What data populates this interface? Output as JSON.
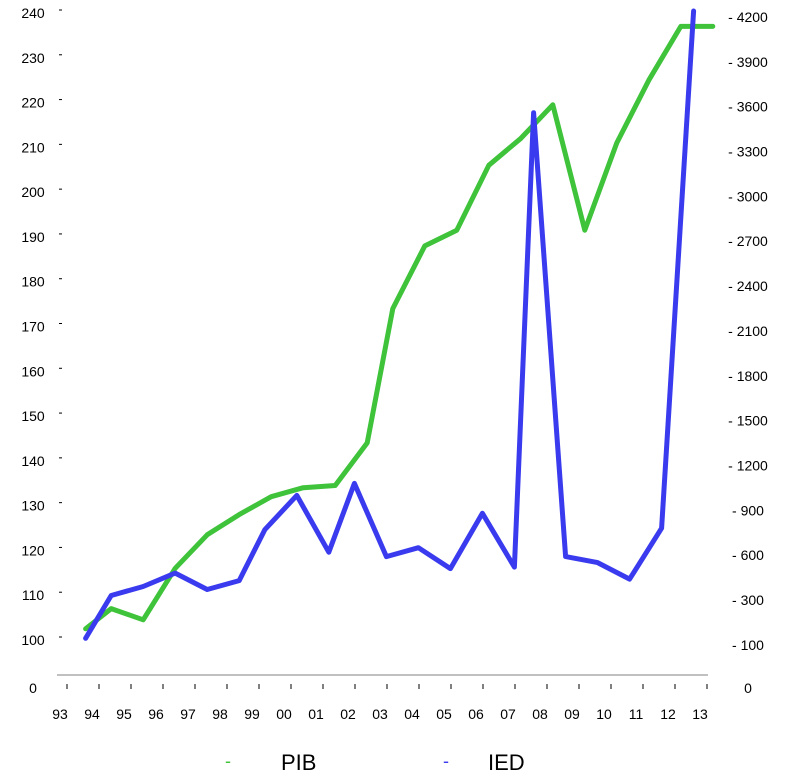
{
  "chart_data": {
    "type": "line",
    "title": "",
    "xlabel": "",
    "ylabel": "",
    "grid": false,
    "legend_placement": "bottom-center",
    "x": [
      "93",
      "94",
      "95",
      "96",
      "97",
      "98",
      "99",
      "00",
      "01",
      "02",
      "03",
      "04",
      "05",
      "06",
      "07",
      "08",
      "09",
      "10",
      "11",
      "12",
      "13"
    ],
    "left_axis": {
      "ticks": [
        "0",
        "100",
        "110",
        "120",
        "130",
        "140",
        "150",
        "160",
        "170",
        "180",
        "190",
        "200",
        "210",
        "220",
        "230",
        "240"
      ]
    },
    "right_axis": {
      "ticks": [
        "0",
        "- 100",
        "- 300",
        "- 600",
        "- 900",
        "- 1200",
        "- 1500",
        "- 1800",
        "- 2100",
        "- 2400",
        "- 2700",
        "- 3000",
        "- 3300",
        "- 3600",
        "- 3900",
        "- 4200"
      ]
    },
    "series": [
      {
        "name": "PIB",
        "axis": "left",
        "color": "#3ec33a",
        "points": [
          {
            "x": 93.8,
            "y": 102.5
          },
          {
            "x": 94.6,
            "y": 107
          },
          {
            "x": 95.6,
            "y": 104.5
          },
          {
            "x": 96.6,
            "y": 116
          },
          {
            "x": 97.6,
            "y": 123.5
          },
          {
            "x": 98.6,
            "y": 128
          },
          {
            "x": 99.6,
            "y": 132
          },
          {
            "x": 100.6,
            "y": 134
          },
          {
            "x": 101.6,
            "y": 134.5
          },
          {
            "x": 102.6,
            "y": 144
          },
          {
            "x": 103.4,
            "y": 174
          },
          {
            "x": 104.4,
            "y": 188
          },
          {
            "x": 105.4,
            "y": 191.5
          },
          {
            "x": 106.4,
            "y": 206
          },
          {
            "x": 107.4,
            "y": 212
          },
          {
            "x": 108.4,
            "y": 219.5
          },
          {
            "x": 109.4,
            "y": 191.5
          },
          {
            "x": 110.4,
            "y": 211
          },
          {
            "x": 111.4,
            "y": 225
          },
          {
            "x": 112.4,
            "y": 237
          },
          {
            "x": 113.4,
            "y": 237
          }
        ]
      },
      {
        "name": "IED",
        "axis": "right",
        "color": "#3a3bef",
        "points": [
          {
            "x": 93.8,
            "y": 130
          },
          {
            "x": 94.6,
            "y": 330
          },
          {
            "x": 95.6,
            "y": 390
          },
          {
            "x": 96.6,
            "y": 480
          },
          {
            "x": 97.6,
            "y": 370
          },
          {
            "x": 98.6,
            "y": 430
          },
          {
            "x": 99.4,
            "y": 770
          },
          {
            "x": 100.4,
            "y": 1000
          },
          {
            "x": 101.4,
            "y": 620
          },
          {
            "x": 102.2,
            "y": 1080
          },
          {
            "x": 103.2,
            "y": 590
          },
          {
            "x": 104.2,
            "y": 650
          },
          {
            "x": 105.2,
            "y": 510
          },
          {
            "x": 106.2,
            "y": 880
          },
          {
            "x": 107.2,
            "y": 520
          },
          {
            "x": 107.8,
            "y": 3560
          },
          {
            "x": 108.8,
            "y": 590
          },
          {
            "x": 109.8,
            "y": 550
          },
          {
            "x": 110.8,
            "y": 440
          },
          {
            "x": 111.8,
            "y": 780
          },
          {
            "x": 112.8,
            "y": 4240
          }
        ]
      }
    ]
  },
  "legend": [
    {
      "marker": "-",
      "label": "PIB",
      "color": "#3ec33a"
    },
    {
      "marker": "-",
      "label": "IED",
      "color": "#3a3bef"
    }
  ]
}
